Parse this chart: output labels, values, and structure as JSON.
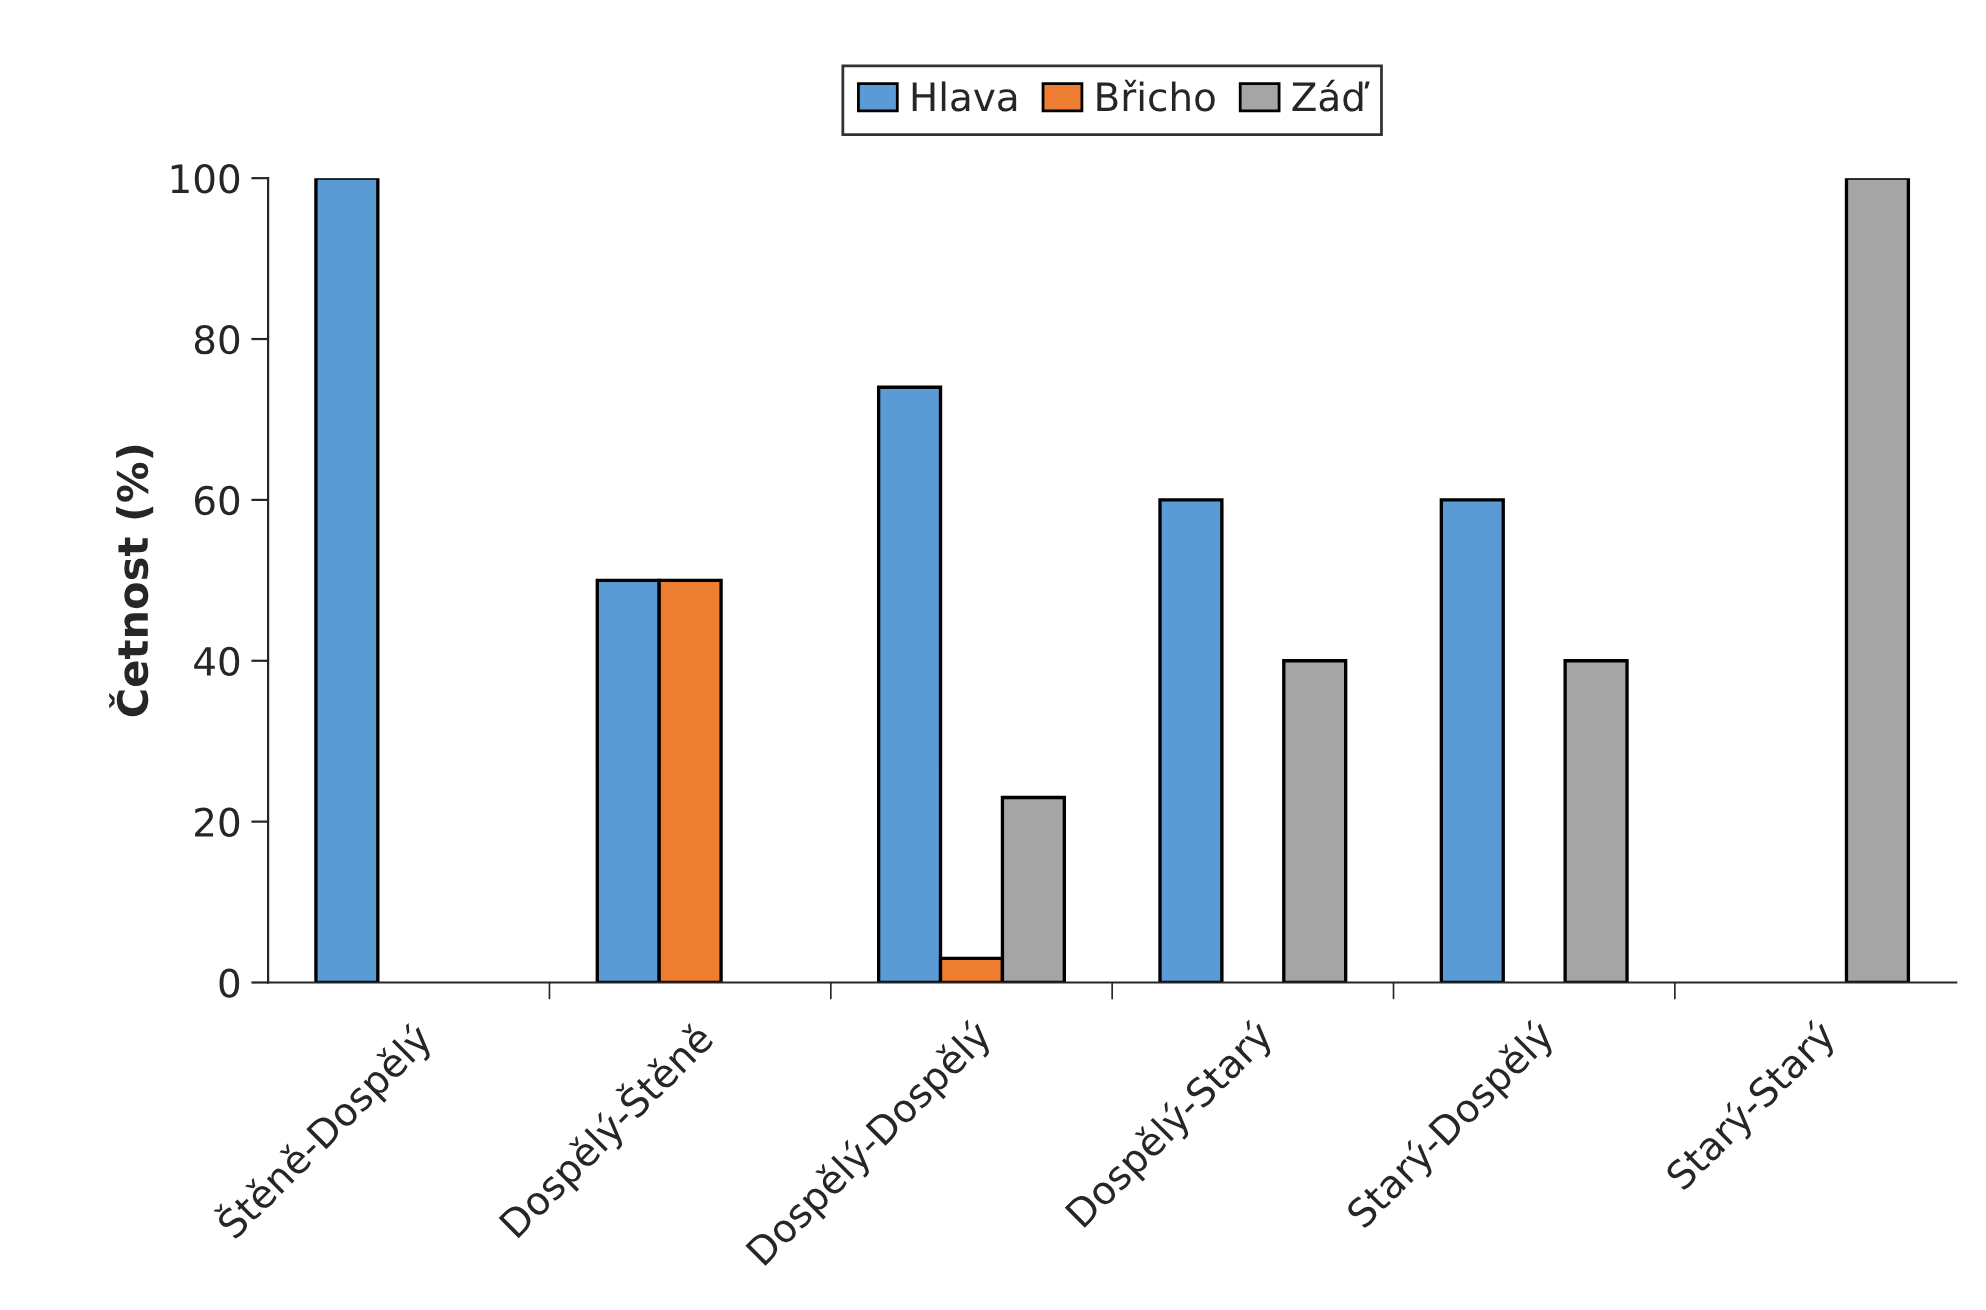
{
  "chart_data": {
    "type": "bar",
    "ylabel": "Četnost (%)",
    "categories": [
      "Štěně-Dospělý",
      "Dospělý-Štěně",
      "Dospělý-Dospělý",
      "Dospělý-Starý",
      "Starý-Dospělý",
      "Starý-Starý"
    ],
    "series": [
      {
        "name": "Hlava",
        "color": "#5b9bd5",
        "values": [
          100,
          50,
          74,
          60,
          60,
          0
        ]
      },
      {
        "name": "Břicho",
        "color": "#ed7d31",
        "values": [
          0,
          50,
          3,
          0,
          0,
          0
        ]
      },
      {
        "name": "Záď",
        "color": "#a5a5a5",
        "values": [
          0,
          0,
          23,
          40,
          40,
          100
        ]
      }
    ],
    "ylim": [
      0,
      100
    ],
    "yticks": [
      0,
      20,
      40,
      60,
      80,
      100
    ],
    "grid": false,
    "legend": "top"
  }
}
